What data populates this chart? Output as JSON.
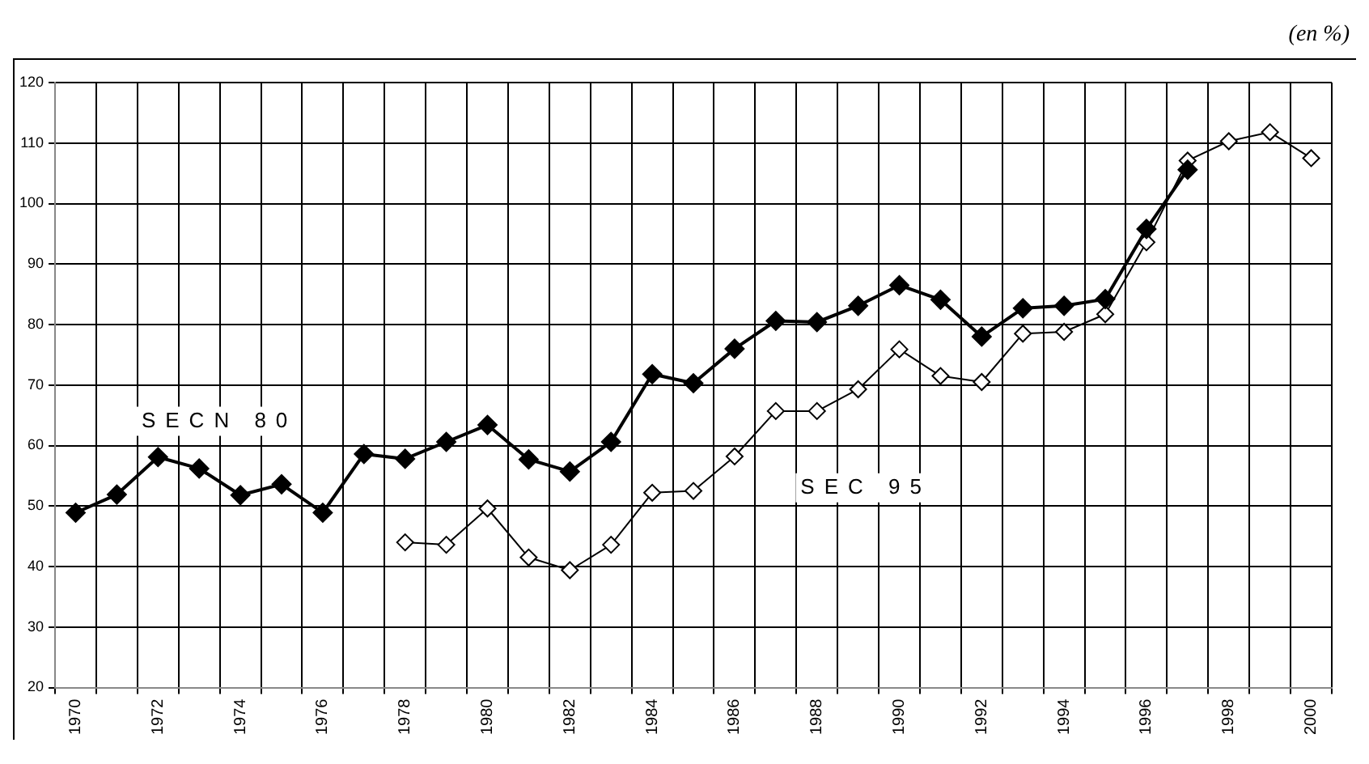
{
  "chart_data": {
    "type": "line",
    "annotations": [
      "(en %)"
    ],
    "categories": [
      "1970",
      null,
      "1972",
      null,
      "1974",
      null,
      "1976",
      null,
      "1978",
      null,
      "1980",
      null,
      "1982",
      null,
      "1984",
      null,
      "1986",
      null,
      "1988",
      null,
      "1990",
      null,
      "1992",
      null,
      "1994",
      null,
      "1996",
      null,
      "1998",
      null,
      "2000"
    ],
    "series": [
      {
        "name": "SECN 80",
        "color": "#000000",
        "values": [
          48.9,
          51.9,
          58.1,
          56.2,
          51.8,
          53.6,
          48.9,
          58.6,
          57.8,
          60.6,
          63.4,
          57.7,
          55.7,
          60.6,
          71.8,
          70.3,
          76,
          80.6,
          80.4,
          83.1,
          86.5,
          84.1,
          78,
          82.7,
          83.1,
          84.2,
          95.8,
          105.6,
          null,
          null,
          null
        ]
      },
      {
        "name": "SEC 95",
        "color": "#000000",
        "values": [
          null,
          null,
          null,
          null,
          null,
          null,
          null,
          null,
          44,
          43.6,
          49.6,
          41.5,
          39.4,
          43.6,
          52.2,
          52.5,
          58.2,
          65.7,
          65.7,
          69.3,
          75.9,
          71.5,
          70.5,
          78.5,
          78.8,
          81.7,
          93.6,
          107.1,
          110.3,
          111.8,
          107.5
        ]
      }
    ],
    "ylim": [
      20,
      120
    ],
    "yticks": [
      20,
      30,
      40,
      50,
      60,
      70,
      80,
      90,
      100,
      110,
      120
    ],
    "grid": true,
    "marker": "diamond",
    "line_style": "solid"
  }
}
